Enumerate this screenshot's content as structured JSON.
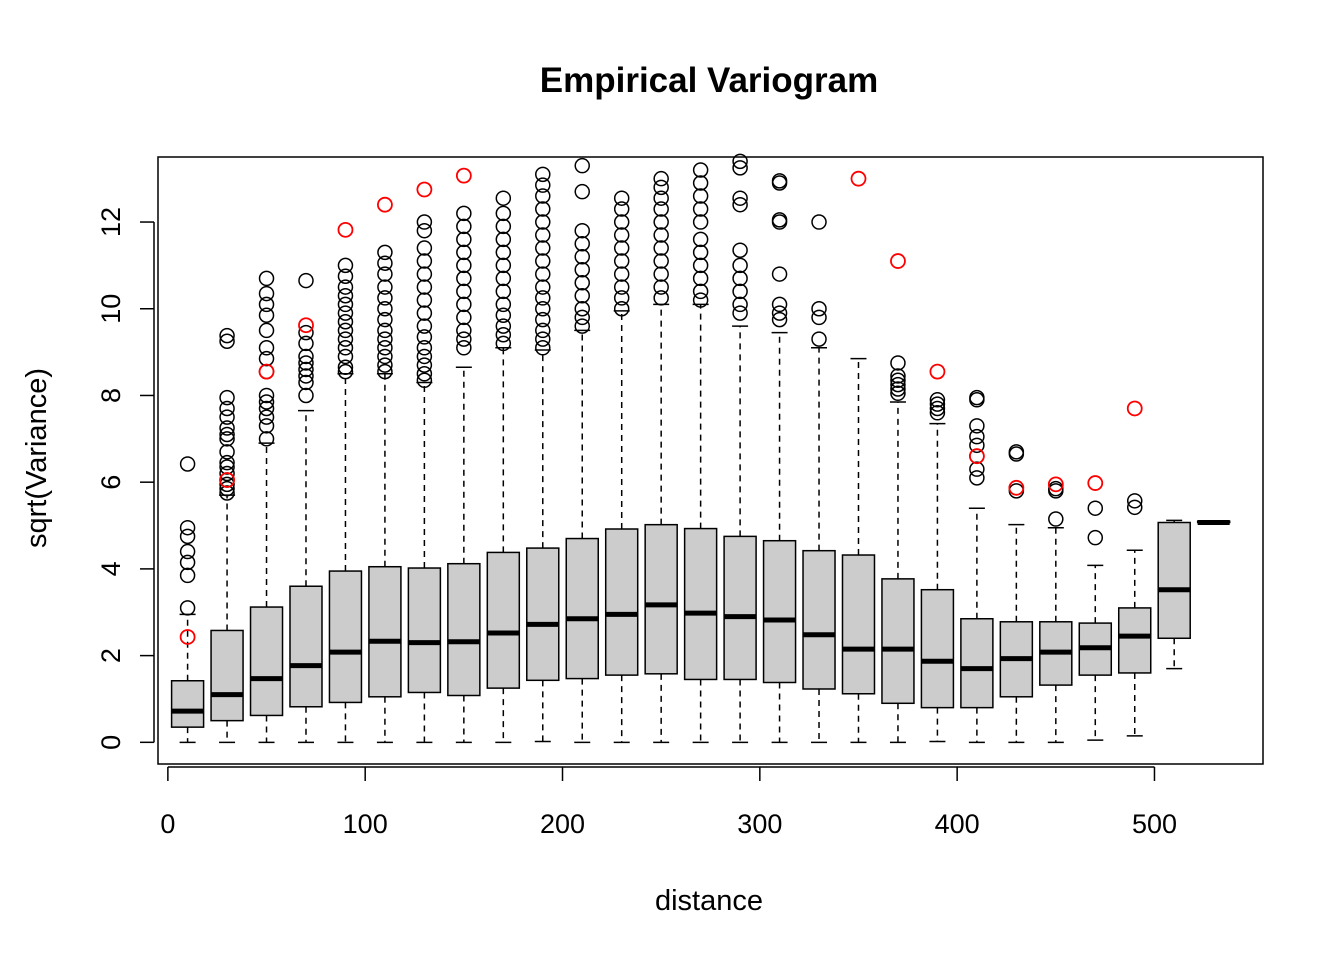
{
  "chart_data": {
    "type": "box",
    "title": "Empirical Variogram",
    "xlabel": "distance",
    "ylabel": "sqrt(Variance)",
    "xlim": [
      -5,
      555
    ],
    "ylim": [
      -0.5,
      13.5
    ],
    "x_ticks": [
      0,
      100,
      200,
      300,
      400,
      500
    ],
    "y_ticks": [
      0,
      2,
      4,
      6,
      8,
      10,
      12
    ],
    "grid": false,
    "legend": "none",
    "box_fill": "#cccccc",
    "line_color": "#000000",
    "red_point_color": "#ff0000",
    "boxes": [
      {
        "x": 10,
        "min": 0,
        "q1": 0.35,
        "median": 0.72,
        "q3": 1.42,
        "max": 2.95,
        "outliers": [
          3.1,
          3.85,
          4.15,
          4.4,
          4.75,
          4.95,
          6.42
        ]
      },
      {
        "x": 30,
        "min": 0,
        "q1": 0.5,
        "median": 1.1,
        "q3": 2.58,
        "max": 5.7,
        "outliers": [
          5.75,
          5.85,
          5.95,
          6.05,
          6.2,
          6.35,
          6.45,
          6.7,
          7.0,
          7.1,
          7.25,
          7.5,
          7.7,
          7.95,
          9.25,
          9.38
        ]
      },
      {
        "x": 50,
        "min": 0,
        "q1": 0.62,
        "median": 1.47,
        "q3": 3.12,
        "max": 6.9,
        "outliers": [
          7.0,
          7.3,
          7.5,
          7.7,
          7.85,
          8.0,
          8.55,
          8.85,
          9.1,
          9.5,
          9.85,
          10.1,
          10.35,
          10.7
        ]
      },
      {
        "x": 70,
        "min": 0,
        "q1": 0.82,
        "median": 1.77,
        "q3": 3.6,
        "max": 7.65,
        "outliers": [
          8.0,
          8.3,
          8.45,
          8.6,
          8.75,
          8.9,
          9.2,
          9.45,
          10.65
        ]
      },
      {
        "x": 90,
        "min": 0,
        "q1": 0.92,
        "median": 2.08,
        "q3": 3.95,
        "max": 8.5,
        "outliers": [
          8.55,
          8.65,
          8.9,
          9.1,
          9.3,
          9.5,
          9.7,
          9.9,
          10.1,
          10.3,
          10.5,
          10.75,
          11.0
        ]
      },
      {
        "x": 110,
        "min": 0,
        "q1": 1.05,
        "median": 2.33,
        "q3": 4.05,
        "max": 8.5,
        "outliers": [
          8.55,
          8.7,
          8.9,
          9.1,
          9.3,
          9.5,
          9.75,
          10.0,
          10.25,
          10.5,
          10.8,
          11.05,
          11.3
        ]
      },
      {
        "x": 130,
        "min": 0,
        "q1": 1.15,
        "median": 2.3,
        "q3": 4.02,
        "max": 8.3,
        "outliers": [
          8.35,
          8.5,
          8.7,
          8.9,
          9.1,
          9.35,
          9.6,
          9.9,
          10.2,
          10.5,
          10.8,
          11.1,
          11.4,
          11.8,
          12.0
        ]
      },
      {
        "x": 150,
        "min": 0,
        "q1": 1.08,
        "median": 2.32,
        "q3": 4.12,
        "max": 8.65,
        "outliers": [
          9.1,
          9.3,
          9.5,
          9.8,
          10.1,
          10.4,
          10.7,
          11.0,
          11.3,
          11.6,
          11.9,
          12.2
        ]
      },
      {
        "x": 170,
        "min": 0,
        "q1": 1.25,
        "median": 2.52,
        "q3": 4.38,
        "max": 9.1,
        "outliers": [
          9.2,
          9.4,
          9.6,
          9.85,
          10.1,
          10.4,
          10.7,
          11.0,
          11.3,
          11.6,
          11.9,
          12.2,
          12.55
        ]
      },
      {
        "x": 190,
        "min": 0.02,
        "q1": 1.43,
        "median": 2.72,
        "q3": 4.48,
        "max": 9.05,
        "outliers": [
          9.1,
          9.3,
          9.5,
          9.75,
          10.0,
          10.25,
          10.5,
          10.8,
          11.1,
          11.4,
          11.7,
          12.0,
          12.3,
          12.6,
          12.85,
          13.1
        ]
      },
      {
        "x": 210,
        "min": 0,
        "q1": 1.47,
        "median": 2.85,
        "q3": 4.7,
        "max": 9.5,
        "outliers": [
          9.6,
          9.8,
          10.0,
          10.3,
          10.6,
          10.9,
          11.2,
          11.5,
          11.8,
          12.7,
          13.3
        ]
      },
      {
        "x": 230,
        "min": 0,
        "q1": 1.55,
        "median": 2.95,
        "q3": 4.92,
        "max": 9.95,
        "outliers": [
          10.0,
          10.25,
          10.5,
          10.8,
          11.1,
          11.4,
          11.7,
          12.0,
          12.3,
          12.55
        ]
      },
      {
        "x": 250,
        "min": 0,
        "q1": 1.58,
        "median": 3.17,
        "q3": 5.02,
        "max": 10.1,
        "outliers": [
          10.25,
          10.5,
          10.8,
          11.1,
          11.4,
          11.7,
          12.0,
          12.3,
          12.55,
          12.8,
          13.0
        ]
      },
      {
        "x": 270,
        "min": 0,
        "q1": 1.45,
        "median": 2.98,
        "q3": 4.93,
        "max": 10.1,
        "outliers": [
          10.2,
          10.4,
          10.7,
          11.0,
          11.3,
          11.6,
          12.0,
          12.3,
          12.6,
          12.9,
          13.2
        ]
      },
      {
        "x": 290,
        "min": 0,
        "q1": 1.45,
        "median": 2.9,
        "q3": 4.75,
        "max": 9.6,
        "outliers": [
          9.9,
          10.1,
          10.4,
          10.7,
          11.0,
          11.35,
          12.4,
          12.55,
          13.25,
          13.4
        ]
      },
      {
        "x": 310,
        "min": 0,
        "q1": 1.38,
        "median": 2.82,
        "q3": 4.65,
        "max": 9.45,
        "outliers": [
          9.75,
          9.9,
          10.1,
          10.8,
          12.0,
          12.05,
          12.9,
          12.95
        ]
      },
      {
        "x": 330,
        "min": 0,
        "q1": 1.23,
        "median": 2.48,
        "q3": 4.42,
        "max": 9.1,
        "outliers": [
          9.3,
          9.8,
          10.0,
          12.0
        ]
      },
      {
        "x": 350,
        "min": 0,
        "q1": 1.12,
        "median": 2.15,
        "q3": 4.32,
        "max": 8.85,
        "outliers": []
      },
      {
        "x": 370,
        "min": 0,
        "q1": 0.9,
        "median": 2.15,
        "q3": 3.77,
        "max": 7.85,
        "outliers": [
          8.05,
          8.15,
          8.25,
          8.35,
          8.45,
          8.75
        ]
      },
      {
        "x": 390,
        "min": 0.02,
        "q1": 0.8,
        "median": 1.87,
        "q3": 3.52,
        "max": 7.35,
        "outliers": [
          7.6,
          7.7,
          7.8,
          7.9
        ]
      },
      {
        "x": 410,
        "min": 0,
        "q1": 0.8,
        "median": 1.7,
        "q3": 2.85,
        "max": 5.4,
        "outliers": [
          6.1,
          6.3,
          6.6,
          6.85,
          7.05,
          7.3,
          7.9,
          7.95
        ]
      },
      {
        "x": 430,
        "min": 0,
        "q1": 1.05,
        "median": 1.93,
        "q3": 2.78,
        "max": 5.02,
        "outliers": [
          5.8,
          6.65,
          6.7
        ]
      },
      {
        "x": 450,
        "min": 0,
        "q1": 1.32,
        "median": 2.08,
        "q3": 2.78,
        "max": 4.95,
        "outliers": [
          5.15,
          5.8,
          5.85
        ]
      },
      {
        "x": 470,
        "min": 0.05,
        "q1": 1.55,
        "median": 2.18,
        "q3": 2.75,
        "max": 4.08,
        "outliers": [
          4.72,
          5.4
        ]
      },
      {
        "x": 490,
        "min": 0.15,
        "q1": 1.6,
        "median": 2.45,
        "q3": 3.1,
        "max": 4.43,
        "outliers": [
          5.42,
          5.57
        ]
      },
      {
        "x": 510,
        "min": 1.7,
        "q1": 2.4,
        "median": 3.52,
        "q3": 5.07,
        "max": 5.12,
        "outliers": []
      },
      {
        "x": 530,
        "min": 5.07,
        "q1": 5.07,
        "median": 5.07,
        "q3": 5.1,
        "max": 5.1,
        "outliers": []
      }
    ],
    "red_points": [
      {
        "x": 10,
        "y": 2.43
      },
      {
        "x": 30,
        "y": 6.05
      },
      {
        "x": 50,
        "y": 8.55
      },
      {
        "x": 70,
        "y": 9.62
      },
      {
        "x": 90,
        "y": 11.82
      },
      {
        "x": 110,
        "y": 12.4
      },
      {
        "x": 130,
        "y": 12.75
      },
      {
        "x": 150,
        "y": 13.07
      },
      {
        "x": 350,
        "y": 13.0
      },
      {
        "x": 370,
        "y": 11.1
      },
      {
        "x": 390,
        "y": 8.55
      },
      {
        "x": 410,
        "y": 6.6
      },
      {
        "x": 430,
        "y": 5.87
      },
      {
        "x": 450,
        "y": 5.95
      },
      {
        "x": 470,
        "y": 5.98
      },
      {
        "x": 490,
        "y": 7.7
      }
    ]
  }
}
